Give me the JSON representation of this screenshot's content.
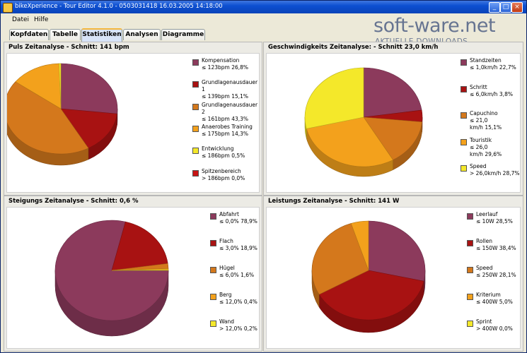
{
  "window": {
    "title": "bikeXperience - Tour Editor 4.1.0 - 0503031418 16.03.2005 14:18:00"
  },
  "menu": [
    "Datei",
    "Hilfe"
  ],
  "watermark": {
    "big": "soft-ware.net",
    "small": "AKTUELLE DOWNLOADS"
  },
  "tabs": [
    "Kopfdaten",
    "Tabelle",
    "Statistiken",
    "Analysen",
    "Diagramme"
  ],
  "active_tab": "Statistiken",
  "colors": {
    "maroon": "#8c3a5c",
    "darkred": "#a81212",
    "orange": "#d4781c",
    "lightorange": "#f3a11c",
    "yellow": "#f4e82a",
    "red": "#c81414"
  },
  "panels": [
    {
      "title": "Puls Zeitanalyse - Schnitt: 141 bpm",
      "legend": [
        {
          "lines": [
            "Kompensation",
            "≤ 123bpm   26,8%"
          ],
          "color": "#8c3a5c"
        },
        {
          "lines": [
            "Grundlagenausdauer",
            "1",
            "≤ 139bpm   15,1%"
          ],
          "color": "#a81212"
        },
        {
          "lines": [
            "Grundlagenausdauer",
            "2",
            "≤ 161bpm   43,3%"
          ],
          "color": "#d4781c"
        },
        {
          "lines": [
            "Anaerobes Training",
            "≤ 175bpm   14,3%"
          ],
          "color": "#f3a11c"
        },
        {
          "lines": [
            "Entwicklung",
            "≤ 186bpm   0,5%"
          ],
          "color": "#f4e82a"
        },
        {
          "lines": [
            "Spitzenbereich",
            "> 186bpm   0,0%"
          ],
          "color": "#c81414"
        }
      ]
    },
    {
      "title": "Geschwindigkeits Zeitanalyse: - Schnitt 23,0 km/h",
      "legend": [
        {
          "lines": [
            "Standzeiten",
            "≤ 1,0km/h   22,7%"
          ],
          "color": "#8c3a5c"
        },
        {
          "lines": [
            "Schritt",
            "≤ 6,0km/h   3,8%"
          ],
          "color": "#a81212"
        },
        {
          "lines": [
            "Capuchino",
            "≤ 21,0",
            "km/h   15,1%"
          ],
          "color": "#d4781c"
        },
        {
          "lines": [
            "Touristik",
            "≤ 26,0",
            "km/h   29,6%"
          ],
          "color": "#f3a11c"
        },
        {
          "lines": [
            "Speed",
            "> 26,0km/h   28,7%"
          ],
          "color": "#f4e82a"
        }
      ]
    },
    {
      "title": "Steigungs Zeitanalyse - Schnitt: 0,6 %",
      "legend": [
        {
          "lines": [
            "Abfahrt",
            "≤ 0,0%   78,9%"
          ],
          "color": "#8c3a5c"
        },
        {
          "lines": [
            "Flach",
            "≤ 3,0%   18,9%"
          ],
          "color": "#a81212"
        },
        {
          "lines": [
            "Hügel",
            "≤ 6,0%   1,6%"
          ],
          "color": "#d4781c"
        },
        {
          "lines": [
            "Berg",
            "≤ 12,0%   0,4%"
          ],
          "color": "#f3a11c"
        },
        {
          "lines": [
            "Wand",
            "> 12,0%   0,2%"
          ],
          "color": "#f4e82a"
        }
      ]
    },
    {
      "title": "Leistungs Zeitanalyse - Schnitt: 141 W",
      "legend": [
        {
          "lines": [
            "Leerlauf",
            "≤ 10W   28,5%"
          ],
          "color": "#8c3a5c"
        },
        {
          "lines": [
            "Rollen",
            "≤ 150W   38,4%"
          ],
          "color": "#a81212"
        },
        {
          "lines": [
            "Speed",
            "≤ 250W   28,1%"
          ],
          "color": "#d4781c"
        },
        {
          "lines": [
            "Kriterium",
            "≤ 400W   5,0%"
          ],
          "color": "#f3a11c"
        },
        {
          "lines": [
            "Sprint",
            "> 400W   0,0%"
          ],
          "color": "#f4e82a"
        }
      ]
    }
  ],
  "chart_data": [
    {
      "type": "pie",
      "title": "Puls Zeitanalyse - Schnitt: 141 bpm",
      "categories": [
        "Kompensation",
        "Grundlagenausdauer 1",
        "Grundlagenausdauer 2",
        "Anaerobes Training",
        "Entwicklung",
        "Spitzenbereich"
      ],
      "values": [
        26.8,
        15.1,
        43.3,
        14.3,
        0.5,
        0.0
      ],
      "colors": [
        "#8c3a5c",
        "#a81212",
        "#d4781c",
        "#f3a11c",
        "#f4e82a",
        "#c81414"
      ]
    },
    {
      "type": "pie",
      "title": "Geschwindigkeits Zeitanalyse: - Schnitt 23,0 km/h",
      "categories": [
        "Standzeiten",
        "Schritt",
        "Capuchino",
        "Touristik",
        "Speed"
      ],
      "values": [
        22.7,
        3.8,
        15.1,
        29.6,
        28.7
      ],
      "colors": [
        "#8c3a5c",
        "#a81212",
        "#d4781c",
        "#f3a11c",
        "#f4e82a"
      ]
    },
    {
      "type": "pie",
      "title": "Steigungs Zeitanalyse - Schnitt: 0,6 %",
      "categories": [
        "Abfahrt",
        "Flach",
        "Hügel",
        "Berg",
        "Wand"
      ],
      "values": [
        78.9,
        18.9,
        1.6,
        0.4,
        0.2
      ],
      "colors": [
        "#8c3a5c",
        "#a81212",
        "#d4781c",
        "#f3a11c",
        "#f4e82a"
      ]
    },
    {
      "type": "pie",
      "title": "Leistungs Zeitanalyse - Schnitt: 141 W",
      "categories": [
        "Leerlauf",
        "Rollen",
        "Speed",
        "Kriterium",
        "Sprint"
      ],
      "values": [
        28.5,
        38.4,
        28.1,
        5.0,
        0.0
      ],
      "colors": [
        "#8c3a5c",
        "#a81212",
        "#d4781c",
        "#f3a11c",
        "#f4e82a"
      ]
    }
  ]
}
